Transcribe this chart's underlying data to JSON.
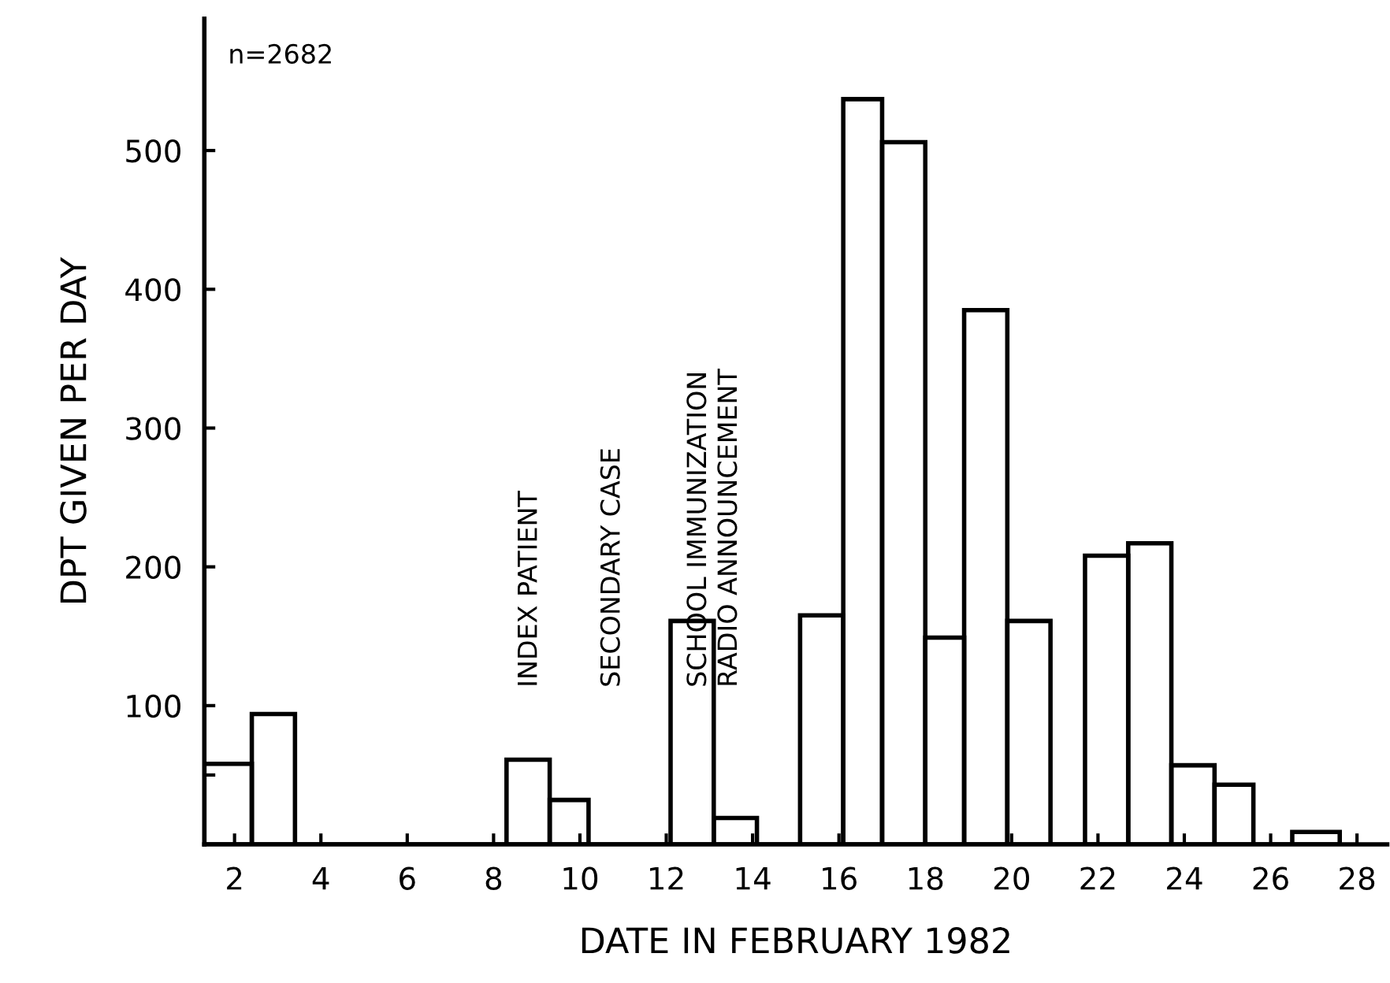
{
  "chart_data": {
    "type": "histogram",
    "xlabel": "DATE IN FEBRUARY 1982",
    "ylabel": "DPT GIVEN PER DAY",
    "bins": [
      1.3,
      2.4,
      3.4,
      8.3,
      9.3,
      10.2,
      12.1,
      13.1,
      14.1,
      15.1,
      16.1,
      17.0,
      18.0,
      18.9,
      19.9,
      20.9,
      21.7,
      22.7,
      23.7,
      24.7,
      25.6,
      26.5,
      27.6
    ],
    "values": [
      58,
      94,
      0,
      61,
      32,
      0,
      161,
      19,
      0,
      165,
      537,
      506,
      149,
      385,
      161,
      0,
      208,
      217,
      57,
      43,
      0,
      9
    ],
    "color": "#000000",
    "xlim": [
      1.3,
      28.7
    ],
    "ylim": [
      0,
      595
    ],
    "xticks": [
      2,
      4,
      6,
      8,
      10,
      12,
      14,
      16,
      18,
      20,
      22,
      24,
      26,
      28
    ],
    "yticks": [
      {
        "value": 50,
        "label": null
      },
      100,
      200,
      300,
      400,
      500
    ],
    "annotations": [
      "n=2682",
      "INDEX PATIENT",
      "SECONDARY CASE",
      "SCHOOL IMMUNIZATION",
      "RADIO ANNOUNCEMENT"
    ]
  }
}
